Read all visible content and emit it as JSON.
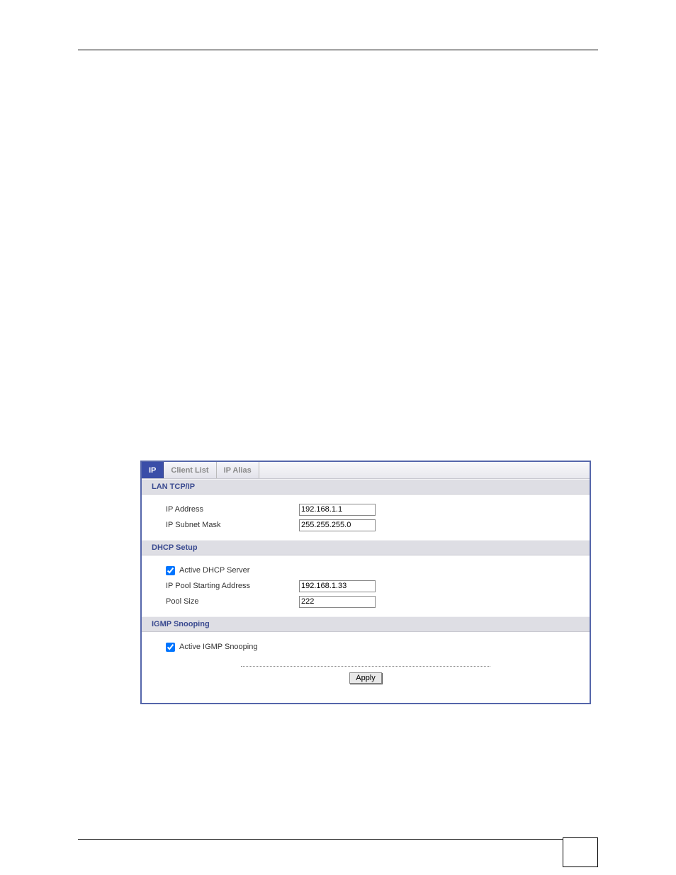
{
  "tabs": {
    "ip": "IP",
    "client_list": "Client List",
    "ip_alias": "IP Alias"
  },
  "lan_tcpip": {
    "header": "LAN TCP/IP",
    "ip_address_label": "IP Address",
    "ip_address_value": "192.168.1.1",
    "subnet_label": "IP Subnet Mask",
    "subnet_value": "255.255.255.0"
  },
  "dhcp": {
    "header": "DHCP Setup",
    "active_label": "Active DHCP Server",
    "active_checked": true,
    "pool_start_label": "IP Pool Starting Address",
    "pool_start_value": "192.168.1.33",
    "pool_size_label": "Pool Size",
    "pool_size_value": "222"
  },
  "igmp": {
    "header": "IGMP Snooping",
    "active_label": "Active IGMP Snooping",
    "active_checked": true
  },
  "apply_label": "Apply",
  "colors": {
    "window_border": "#5566aa",
    "tab_active_bg": "#3a4ea8",
    "section_header_bg": "#dedee4",
    "section_header_text": "#3a4a90"
  }
}
